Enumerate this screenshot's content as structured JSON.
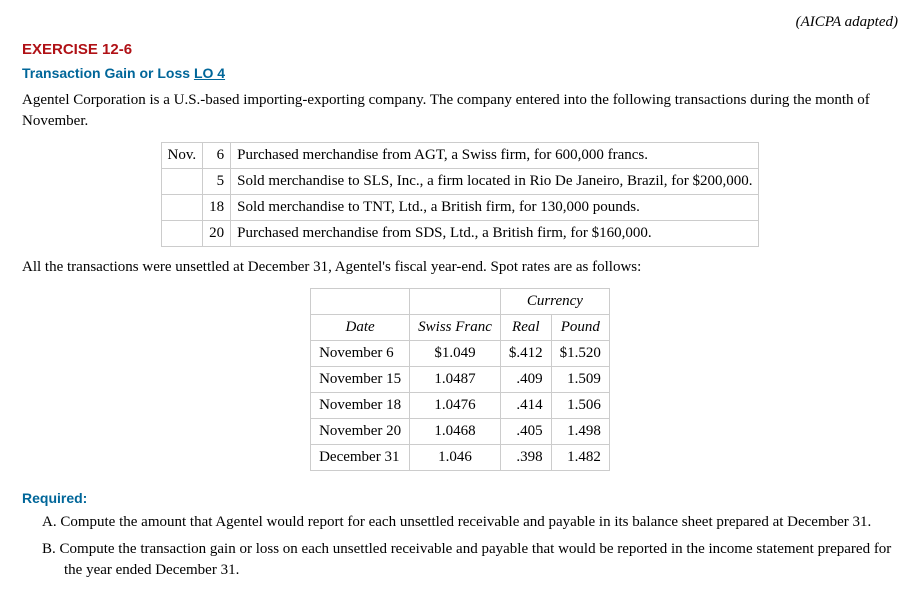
{
  "header": {
    "adapted": "(AICPA adapted)",
    "exercise_num": "EXERCISE 12-6",
    "title_prefix": "Transaction Gain or Loss ",
    "lo_label": "LO 4"
  },
  "intro": "Agentel Corporation is a U.S.-based importing-exporting company. The company entered into the following transactions during the month of November.",
  "transactions": {
    "month": "Nov.",
    "rows": [
      {
        "day": "6",
        "desc": "Purchased merchandise from AGT, a Swiss firm, for 600,000 francs."
      },
      {
        "day": "5",
        "desc": "Sold merchandise to SLS, Inc., a firm located in Rio De Janeiro, Brazil, for $200,000."
      },
      {
        "day": "18",
        "desc": "Sold merchandise to TNT, Ltd., a British firm, for 130,000 pounds."
      },
      {
        "day": "20",
        "desc": "Purchased merchandise from SDS, Ltd., a British firm, for $160,000."
      }
    ]
  },
  "rates_intro": "All the transactions were unsettled at December 31, Agentel's fiscal year-end. Spot rates are as follows:",
  "rates": {
    "currency_label": "Currency",
    "headers": {
      "date": "Date",
      "swiss": "Swiss Franc",
      "real": "Real",
      "pound": "Pound"
    },
    "rows": [
      {
        "date": "November 6",
        "swiss": "$1.049",
        "real": "$.412",
        "pound": "$1.520"
      },
      {
        "date": "November 15",
        "swiss": "1.0487",
        "real": ".409",
        "pound": "1.509"
      },
      {
        "date": "November 18",
        "swiss": "1.0476",
        "real": ".414",
        "pound": "1.506"
      },
      {
        "date": "November 20",
        "swiss": "1.0468",
        "real": ".405",
        "pound": "1.498"
      },
      {
        "date": "December 31",
        "swiss": "1.046",
        "real": ".398",
        "pound": "1.482"
      }
    ]
  },
  "required": {
    "label": "Required:",
    "items": [
      {
        "letter": "A.",
        "text": "Compute the amount that Agentel would report for each unsettled receivable and payable in its balance sheet prepared at December 31."
      },
      {
        "letter": "B.",
        "text": "Compute the transaction gain or loss on each unsettled receivable and payable that would be reported in the income statement prepared for the year ended December 31."
      }
    ]
  }
}
